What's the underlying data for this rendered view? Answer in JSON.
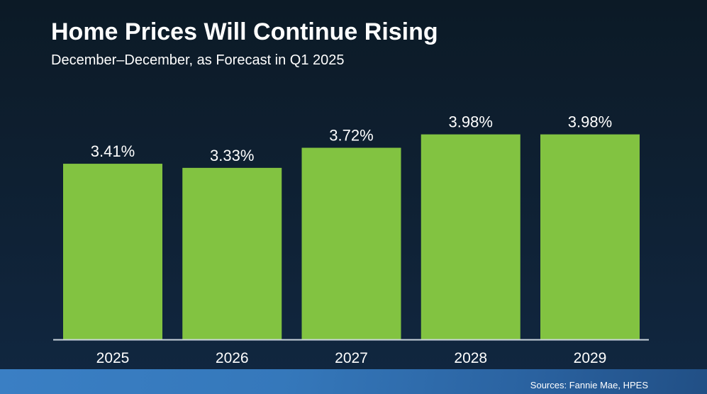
{
  "chart_data": {
    "type": "bar",
    "title": "Home Prices Will Continue Rising",
    "subtitle": "December–December, as Forecast in Q1 2025",
    "categories": [
      "2025",
      "2026",
      "2027",
      "2028",
      "2029"
    ],
    "values": [
      3.41,
      3.33,
      3.72,
      3.98,
      3.98
    ],
    "data_labels": [
      "3.41%",
      "3.33%",
      "3.72%",
      "3.98%",
      "3.98%"
    ],
    "xlabel": "",
    "ylabel": "",
    "ylim": [
      0,
      4.8
    ],
    "grid": false,
    "legend": "none",
    "unit": "%",
    "source": "Sources: Fannie Mae, HPES",
    "colors": {
      "bar": "#82c341",
      "axis": "#c9d3dc",
      "text": "#ffffff"
    }
  }
}
